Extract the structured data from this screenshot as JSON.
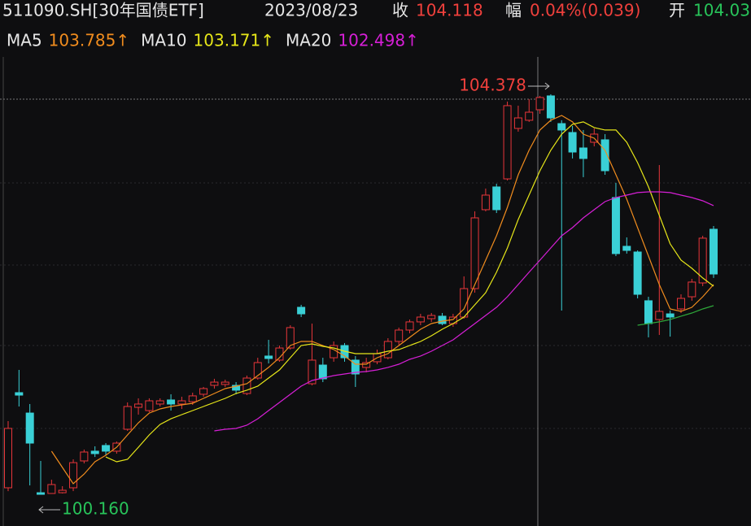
{
  "chart_data": {
    "type": "candlestick",
    "header": {
      "symbol": "511090.SH[30年国债ETF]",
      "date": "2023/08/23",
      "close_label": "收",
      "close": 104.118,
      "change_label": "幅",
      "change": "0.04%(0.039)",
      "open_label": "开",
      "open": 104.03
    },
    "up_color": "#e8363a",
    "down_color": "#3ad0d6",
    "ylim": [
      99.826,
      104.772
    ],
    "open": [
      100.229,
      101.232,
      101.017,
      100.177,
      100.169,
      100.177,
      100.229,
      100.512,
      100.615,
      100.675,
      100.615,
      100.846,
      101.077,
      101.043,
      101.112,
      101.155,
      101.112,
      101.137,
      101.215,
      101.309,
      101.318,
      101.309,
      101.223,
      101.386,
      101.618,
      101.575,
      101.703,
      102.132,
      101.326,
      101.523,
      101.6,
      101.729,
      101.575,
      101.498,
      101.558,
      101.6,
      101.772,
      101.892,
      101.978,
      102.012,
      102.038,
      101.96,
      102.029,
      102.329,
      103.161,
      103.401,
      103.486,
      104.018,
      104.104,
      104.215,
      104.361,
      104.069,
      103.975,
      103.812,
      103.872,
      103.898,
      103.289,
      102.775,
      102.715,
      102.201,
      102.003,
      102.063,
      102.115,
      102.243,
      102.389,
      102.955
    ],
    "high": [
      100.932,
      101.472,
      101.112,
      100.512,
      100.314,
      100.246,
      100.529,
      100.632,
      100.666,
      100.7,
      100.717,
      101.129,
      101.172,
      101.172,
      101.172,
      101.215,
      101.189,
      101.232,
      101.292,
      101.378,
      101.369,
      101.343,
      101.412,
      101.6,
      101.789,
      101.729,
      101.943,
      102.158,
      101.96,
      101.6,
      101.772,
      101.755,
      101.618,
      101.6,
      101.686,
      101.806,
      101.918,
      102.003,
      102.063,
      102.072,
      102.072,
      102.063,
      102.458,
      103.144,
      103.384,
      103.435,
      104.301,
      104.258,
      104.327,
      104.361,
      104.378,
      104.104,
      104.044,
      104.001,
      104.018,
      103.958,
      103.444,
      102.869,
      102.732,
      102.243,
      103.632,
      102.098,
      102.269,
      102.432,
      102.886,
      102.989
    ],
    "low": [
      100.194,
      101.086,
      100.254,
      100.16,
      100.169,
      100.169,
      100.194,
      100.486,
      100.554,
      100.572,
      100.589,
      100.829,
      101.0,
      101.026,
      101.086,
      101.043,
      101.06,
      101.103,
      101.189,
      101.275,
      101.292,
      101.215,
      101.206,
      101.369,
      101.54,
      101.558,
      101.686,
      102.029,
      101.309,
      101.343,
      101.558,
      101.558,
      101.292,
      101.446,
      101.532,
      101.583,
      101.738,
      101.858,
      101.943,
      101.978,
      101.943,
      101.926,
      102.012,
      102.286,
      103.144,
      103.126,
      103.469,
      103.984,
      104.087,
      104.172,
      104.087,
      102.098,
      103.701,
      103.504,
      103.829,
      103.529,
      102.672,
      102.698,
      102.226,
      101.815,
      101.84,
      101.823,
      102.072,
      102.201,
      102.355,
      102.441
    ],
    "close": [
      100.855,
      101.206,
      100.7,
      100.16,
      100.263,
      100.203,
      100.494,
      100.606,
      100.589,
      100.615,
      100.7,
      101.086,
      101.112,
      101.146,
      101.146,
      101.112,
      101.146,
      101.198,
      101.275,
      101.343,
      101.343,
      101.258,
      101.386,
      101.549,
      101.592,
      101.703,
      101.918,
      102.063,
      101.575,
      101.378,
      101.729,
      101.6,
      101.429,
      101.549,
      101.643,
      101.772,
      101.892,
      101.978,
      102.029,
      102.046,
      101.96,
      102.029,
      102.329,
      103.075,
      103.315,
      103.161,
      104.258,
      104.129,
      104.189,
      104.344,
      104.129,
      104.001,
      103.769,
      103.701,
      103.958,
      103.572,
      102.698,
      102.732,
      102.269,
      101.96,
      102.089,
      102.029,
      102.226,
      102.398,
      102.861,
      102.483
    ],
    "lines": [
      {
        "name": "MA5",
        "latest": "103.785↑",
        "color": "#f08c1e",
        "values": [
          null,
          null,
          null,
          null,
          100.615,
          100.443,
          100.272,
          100.374,
          100.503,
          100.572,
          100.657,
          100.786,
          100.915,
          101.017,
          101.06,
          101.086,
          101.103,
          101.12,
          101.172,
          101.223,
          101.275,
          101.3,
          101.326,
          101.412,
          101.498,
          101.6,
          101.729,
          101.772,
          101.772,
          101.729,
          101.686,
          101.618,
          101.532,
          101.532,
          101.6,
          101.643,
          101.729,
          101.815,
          101.9,
          101.96,
          101.986,
          102.003,
          102.115,
          102.372,
          102.629,
          102.886,
          103.186,
          103.529,
          103.787,
          104.001,
          104.104,
          104.155,
          104.087,
          103.958,
          103.915,
          103.787,
          103.529,
          103.272,
          102.972,
          102.672,
          102.372,
          102.115,
          102.089,
          102.132,
          102.243,
          102.372
        ]
      },
      {
        "name": "MA10",
        "latest": "103.171↑",
        "color": "#e6e619",
        "values": [
          null,
          null,
          null,
          null,
          null,
          null,
          null,
          null,
          null,
          100.554,
          100.503,
          100.529,
          100.657,
          100.786,
          100.897,
          100.957,
          101.0,
          101.043,
          101.086,
          101.129,
          101.172,
          101.223,
          101.258,
          101.3,
          101.386,
          101.472,
          101.6,
          101.729,
          101.746,
          101.72,
          101.703,
          101.669,
          101.643,
          101.643,
          101.643,
          101.669,
          101.686,
          101.729,
          101.772,
          101.832,
          101.9,
          101.96,
          102.029,
          102.158,
          102.286,
          102.501,
          102.758,
          103.058,
          103.315,
          103.572,
          103.787,
          103.958,
          104.061,
          104.087,
          104.027,
          104.001,
          104.001,
          103.872,
          103.658,
          103.401,
          103.101,
          102.801,
          102.629,
          102.543,
          102.441,
          102.355
        ]
      },
      {
        "name": "MA20",
        "latest": "102.498↑",
        "color": "#d61fd6",
        "values": [
          null,
          null,
          null,
          null,
          null,
          null,
          null,
          null,
          null,
          null,
          null,
          null,
          null,
          null,
          null,
          null,
          null,
          null,
          null,
          100.829,
          100.846,
          100.855,
          100.889,
          100.957,
          101.043,
          101.129,
          101.215,
          101.3,
          101.36,
          101.386,
          101.412,
          101.429,
          101.446,
          101.455,
          101.472,
          101.498,
          101.532,
          101.583,
          101.618,
          101.669,
          101.729,
          101.789,
          101.875,
          101.96,
          102.046,
          102.132,
          102.243,
          102.372,
          102.501,
          102.629,
          102.758,
          102.886,
          102.972,
          103.075,
          103.161,
          103.246,
          103.289,
          103.315,
          103.341,
          103.349,
          103.349,
          103.341,
          103.315,
          103.289,
          103.255,
          103.204
        ]
      },
      {
        "color": "#2ea83a",
        "values": [
          null,
          null,
          null,
          null,
          null,
          null,
          null,
          null,
          null,
          null,
          null,
          null,
          null,
          null,
          null,
          null,
          null,
          null,
          null,
          null,
          null,
          null,
          null,
          null,
          null,
          null,
          null,
          null,
          null,
          null,
          null,
          null,
          null,
          null,
          null,
          null,
          null,
          null,
          null,
          null,
          null,
          null,
          null,
          null,
          null,
          null,
          null,
          null,
          null,
          null,
          null,
          null,
          null,
          null,
          null,
          null,
          null,
          null,
          101.943,
          101.96,
          101.978,
          102.003,
          102.038,
          102.072,
          102.115,
          102.149
        ]
      }
    ],
    "max_marker": {
      "value": 104.378,
      "label": "104.378"
    },
    "min_marker": {
      "value": 100.16,
      "label": "100.160"
    }
  }
}
